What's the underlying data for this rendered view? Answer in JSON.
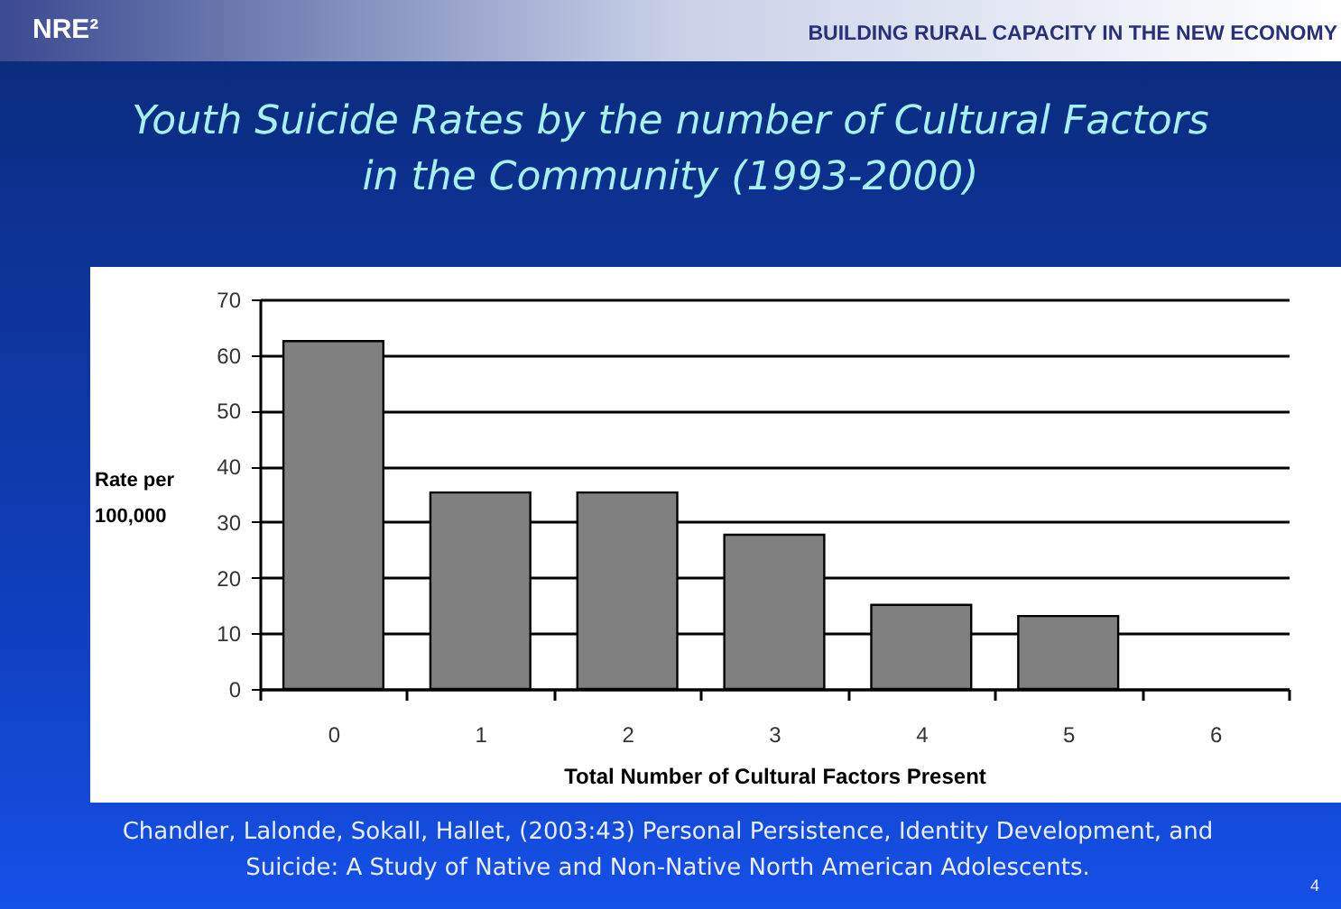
{
  "chart_data": {
    "type": "bar",
    "title": "Youth Suicide Rates by the number of Cultural Factors in the Community (1993-2000)",
    "xlabel": "Total Number of Cultural Factors Present",
    "ylabel": "Rate per 100,000",
    "categories": [
      "0",
      "1",
      "2",
      "3",
      "4",
      "5",
      "6"
    ],
    "values": [
      62.5,
      35.3,
      35.3,
      27.7,
      15.1,
      13.1,
      null
    ],
    "color": "#808080",
    "ylim": [
      0,
      70
    ],
    "yticks": [
      0,
      10,
      20,
      30,
      40,
      50,
      60,
      70
    ],
    "grid": "y",
    "annotations": [
      "NRE²",
      "BUILDING RURAL CAPACITY IN THE NEW ECONOMY",
      "Chandler, Lalonde, Sokall, Hallet, (2003:43) Personal Persistence, Identity Development, and Suicide: A Study of Native and Non-Native North American Adolescents.",
      "4"
    ]
  }
}
